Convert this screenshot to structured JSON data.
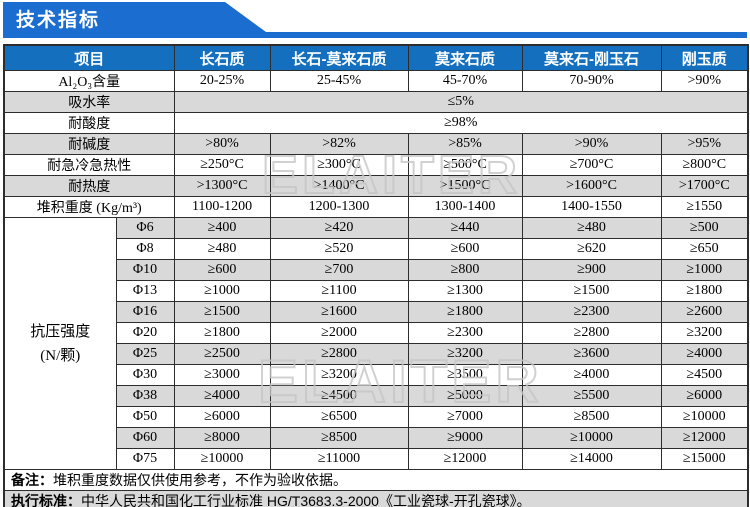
{
  "banner": {
    "title": "技术指标"
  },
  "colors": {
    "banner_blue": "#1b6ed0",
    "header_blue": "#1470be",
    "row_gray": "#d9d9d9",
    "border_dark": "#2d2d2d",
    "watermark_gray": "#c6c6c6"
  },
  "watermark": {
    "text": "ELAITER"
  },
  "table": {
    "header": [
      "项目",
      "长石质",
      "长石-莫来石质",
      "莫来石质",
      "莫来石-刚玉石",
      "刚玉质"
    ],
    "property_rows": [
      {
        "label": "Al₂O₃含量",
        "values": [
          "20-25%",
          "25-45%",
          "45-70%",
          "70-90%",
          ">90%"
        ]
      },
      {
        "label": "吸水率",
        "merged_value": "≤5%"
      },
      {
        "label": "耐酸度",
        "merged_value": "≥98%"
      },
      {
        "label": "耐碱度",
        "values": [
          ">80%",
          ">82%",
          ">85%",
          ">90%",
          ">95%"
        ]
      },
      {
        "label": "耐急冷急热性",
        "values": [
          "≥250°C",
          "≥300°C",
          "≥500°C",
          "≥700°C",
          "≥800°C"
        ]
      },
      {
        "label": "耐热度",
        "values": [
          ">1300°C",
          ">1400°C",
          ">1500°C",
          ">1600°C",
          ">1700°C"
        ]
      },
      {
        "label": "堆积重度 (Kg/m³)",
        "values": [
          "1100-1200",
          "1200-1300",
          "1300-1400",
          "1400-1550",
          "≥1550"
        ]
      }
    ],
    "strength": {
      "label_line1": "抗压强度",
      "label_line2": "(N/颗)",
      "rows": [
        {
          "size": "Φ6",
          "values": [
            "≥400",
            "≥420",
            "≥440",
            "≥480",
            "≥500"
          ]
        },
        {
          "size": "Φ8",
          "values": [
            "≥480",
            "≥520",
            "≥600",
            "≥620",
            "≥650"
          ]
        },
        {
          "size": "Φ10",
          "values": [
            "≥600",
            "≥700",
            "≥800",
            "≥900",
            "≥1000"
          ]
        },
        {
          "size": "Φ13",
          "values": [
            "≥1000",
            "≥1100",
            "≥1300",
            "≥1500",
            "≥1800"
          ]
        },
        {
          "size": "Φ16",
          "values": [
            "≥1500",
            "≥1600",
            "≥1800",
            "≥2300",
            "≥2600"
          ]
        },
        {
          "size": "Φ20",
          "values": [
            "≥1800",
            "≥2000",
            "≥2300",
            "≥2800",
            "≥3200"
          ]
        },
        {
          "size": "Φ25",
          "values": [
            "≥2500",
            "≥2800",
            "≥3200",
            "≥3600",
            "≥4000"
          ]
        },
        {
          "size": "Φ30",
          "values": [
            "≥3000",
            "≥3200",
            "≥3500",
            "≥4000",
            "≥4500"
          ]
        },
        {
          "size": "Φ38",
          "values": [
            "≥4000",
            "≥4500",
            "≥5000",
            "≥5500",
            "≥6000"
          ]
        },
        {
          "size": "Φ50",
          "values": [
            "≥6000",
            "≥6500",
            "≥7000",
            "≥8500",
            "≥10000"
          ]
        },
        {
          "size": "Φ60",
          "values": [
            "≥8000",
            "≥8500",
            "≥9000",
            "≥10000",
            "≥12000"
          ]
        },
        {
          "size": "Φ75",
          "values": [
            "≥10000",
            "≥11000",
            "≥12000",
            "≥14000",
            "≥15000"
          ]
        }
      ]
    },
    "notes": [
      {
        "label": "备注：",
        "text": "堆积重度数据仅供使用参考，不作为验收依据。"
      },
      {
        "label": "执行标准：",
        "text": "中华人民共和国化工行业标准 HG/T3683.3-2000《工业瓷球-开孔瓷球》。"
      }
    ]
  }
}
